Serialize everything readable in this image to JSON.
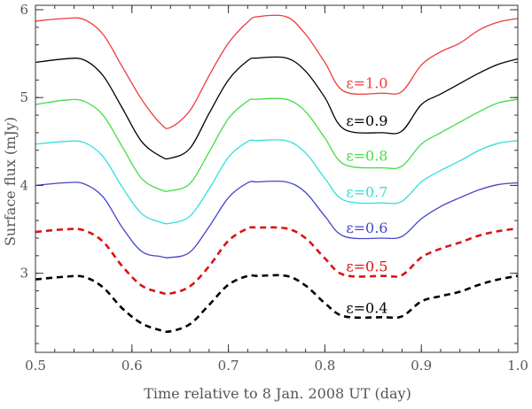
{
  "chart_data": {
    "type": "line",
    "xlabel": "Time relative to 8 Jan. 2008 UT (day)",
    "ylabel": "Surface flux (mJy)",
    "xlim": [
      0.5,
      1.0
    ],
    "ylim": [
      2.1,
      6.05
    ],
    "xticks": [
      0.5,
      0.6,
      0.7,
      0.8,
      0.9,
      1.0
    ],
    "xtick_labels": [
      "0.5",
      "0.6",
      "0.7",
      "0.8",
      "0.9",
      "1.0"
    ],
    "yticks": [
      3,
      4,
      5,
      6
    ],
    "ytick_labels": [
      "3",
      "4",
      "5",
      "6"
    ],
    "grid": false,
    "series": [
      {
        "name": "ε=1.0",
        "label": "ε=1.0",
        "color": "#ee3b3b",
        "dashed": false,
        "x": [
          0.5,
          0.53,
          0.55,
          0.57,
          0.59,
          0.61,
          0.63,
          0.64,
          0.66,
          0.68,
          0.7,
          0.72,
          0.73,
          0.76,
          0.78,
          0.8,
          0.82,
          0.86,
          0.88,
          0.9,
          0.92,
          0.94,
          0.96,
          0.98,
          1.0
        ],
        "values": [
          5.87,
          5.9,
          5.89,
          5.72,
          5.35,
          4.98,
          4.7,
          4.66,
          4.85,
          5.25,
          5.62,
          5.86,
          5.92,
          5.92,
          5.72,
          5.4,
          5.07,
          5.05,
          5.07,
          5.37,
          5.52,
          5.62,
          5.77,
          5.86,
          5.9
        ]
      },
      {
        "name": "ε=0.9",
        "label": "ε=0.9",
        "color": "#000000",
        "dashed": false,
        "x": [
          0.5,
          0.53,
          0.55,
          0.57,
          0.59,
          0.61,
          0.63,
          0.64,
          0.66,
          0.68,
          0.7,
          0.72,
          0.73,
          0.76,
          0.78,
          0.8,
          0.82,
          0.86,
          0.88,
          0.9,
          0.92,
          0.94,
          0.96,
          0.98,
          1.0
        ],
        "values": [
          5.4,
          5.44,
          5.43,
          5.25,
          4.88,
          4.5,
          4.33,
          4.31,
          4.42,
          4.82,
          5.2,
          5.42,
          5.45,
          5.45,
          5.3,
          5.0,
          4.64,
          4.6,
          4.62,
          4.92,
          5.04,
          5.16,
          5.28,
          5.38,
          5.44
        ]
      },
      {
        "name": "ε=0.8",
        "label": "ε=0.8",
        "color": "#44dd44",
        "dashed": false,
        "x": [
          0.5,
          0.53,
          0.55,
          0.57,
          0.59,
          0.61,
          0.63,
          0.64,
          0.66,
          0.68,
          0.7,
          0.72,
          0.73,
          0.76,
          0.78,
          0.8,
          0.82,
          0.86,
          0.88,
          0.9,
          0.92,
          0.94,
          0.96,
          0.98,
          1.0
        ],
        "values": [
          4.92,
          4.97,
          4.96,
          4.8,
          4.44,
          4.08,
          3.95,
          3.94,
          4.02,
          4.38,
          4.76,
          4.96,
          4.98,
          4.98,
          4.84,
          4.54,
          4.24,
          4.2,
          4.22,
          4.47,
          4.6,
          4.72,
          4.84,
          4.94,
          4.98
        ]
      },
      {
        "name": "ε=0.7",
        "label": "ε=0.7",
        "color": "#33dddd",
        "dashed": false,
        "x": [
          0.5,
          0.53,
          0.55,
          0.57,
          0.59,
          0.61,
          0.63,
          0.64,
          0.66,
          0.68,
          0.7,
          0.72,
          0.73,
          0.76,
          0.78,
          0.8,
          0.82,
          0.86,
          0.88,
          0.9,
          0.92,
          0.94,
          0.96,
          0.98,
          1.0
        ],
        "values": [
          4.47,
          4.5,
          4.49,
          4.33,
          3.98,
          3.68,
          3.58,
          3.57,
          3.65,
          3.96,
          4.32,
          4.5,
          4.51,
          4.51,
          4.37,
          4.08,
          3.83,
          3.8,
          3.82,
          4.04,
          4.17,
          4.28,
          4.4,
          4.48,
          4.51
        ]
      },
      {
        "name": "ε=0.6",
        "label": "ε=0.6",
        "color": "#4444cc",
        "dashed": false,
        "x": [
          0.5,
          0.53,
          0.55,
          0.57,
          0.59,
          0.61,
          0.63,
          0.64,
          0.66,
          0.68,
          0.7,
          0.72,
          0.73,
          0.76,
          0.78,
          0.8,
          0.82,
          0.86,
          0.88,
          0.9,
          0.92,
          0.94,
          0.96,
          0.98,
          1.0
        ],
        "values": [
          4.0,
          4.03,
          4.02,
          3.87,
          3.52,
          3.25,
          3.19,
          3.18,
          3.24,
          3.53,
          3.86,
          4.03,
          4.04,
          4.04,
          3.92,
          3.65,
          3.42,
          3.4,
          3.42,
          3.62,
          3.76,
          3.86,
          3.95,
          4.01,
          4.03
        ]
      },
      {
        "name": "ε=0.5",
        "label": "ε=0.5",
        "color": "#dd1111",
        "dashed": true,
        "x": [
          0.5,
          0.53,
          0.55,
          0.57,
          0.59,
          0.61,
          0.63,
          0.64,
          0.66,
          0.68,
          0.7,
          0.72,
          0.73,
          0.76,
          0.78,
          0.8,
          0.82,
          0.86,
          0.88,
          0.9,
          0.92,
          0.94,
          0.96,
          0.98,
          1.0
        ],
        "values": [
          3.47,
          3.5,
          3.49,
          3.36,
          3.08,
          2.86,
          2.78,
          2.77,
          2.85,
          3.08,
          3.37,
          3.51,
          3.52,
          3.51,
          3.4,
          3.17,
          2.98,
          2.97,
          2.98,
          3.18,
          3.28,
          3.35,
          3.43,
          3.48,
          3.51
        ]
      },
      {
        "name": "ε=0.4",
        "label": "ε=0.4",
        "color": "#000000",
        "dashed": true,
        "x": [
          0.5,
          0.53,
          0.55,
          0.57,
          0.59,
          0.61,
          0.63,
          0.64,
          0.66,
          0.68,
          0.7,
          0.72,
          0.73,
          0.76,
          0.78,
          0.8,
          0.82,
          0.86,
          0.88,
          0.9,
          0.92,
          0.94,
          0.96,
          0.98,
          1.0
        ],
        "values": [
          2.93,
          2.96,
          2.96,
          2.84,
          2.6,
          2.43,
          2.35,
          2.34,
          2.42,
          2.64,
          2.87,
          2.97,
          2.97,
          2.97,
          2.86,
          2.66,
          2.51,
          2.5,
          2.51,
          2.68,
          2.74,
          2.79,
          2.87,
          2.93,
          2.97
        ]
      }
    ]
  }
}
